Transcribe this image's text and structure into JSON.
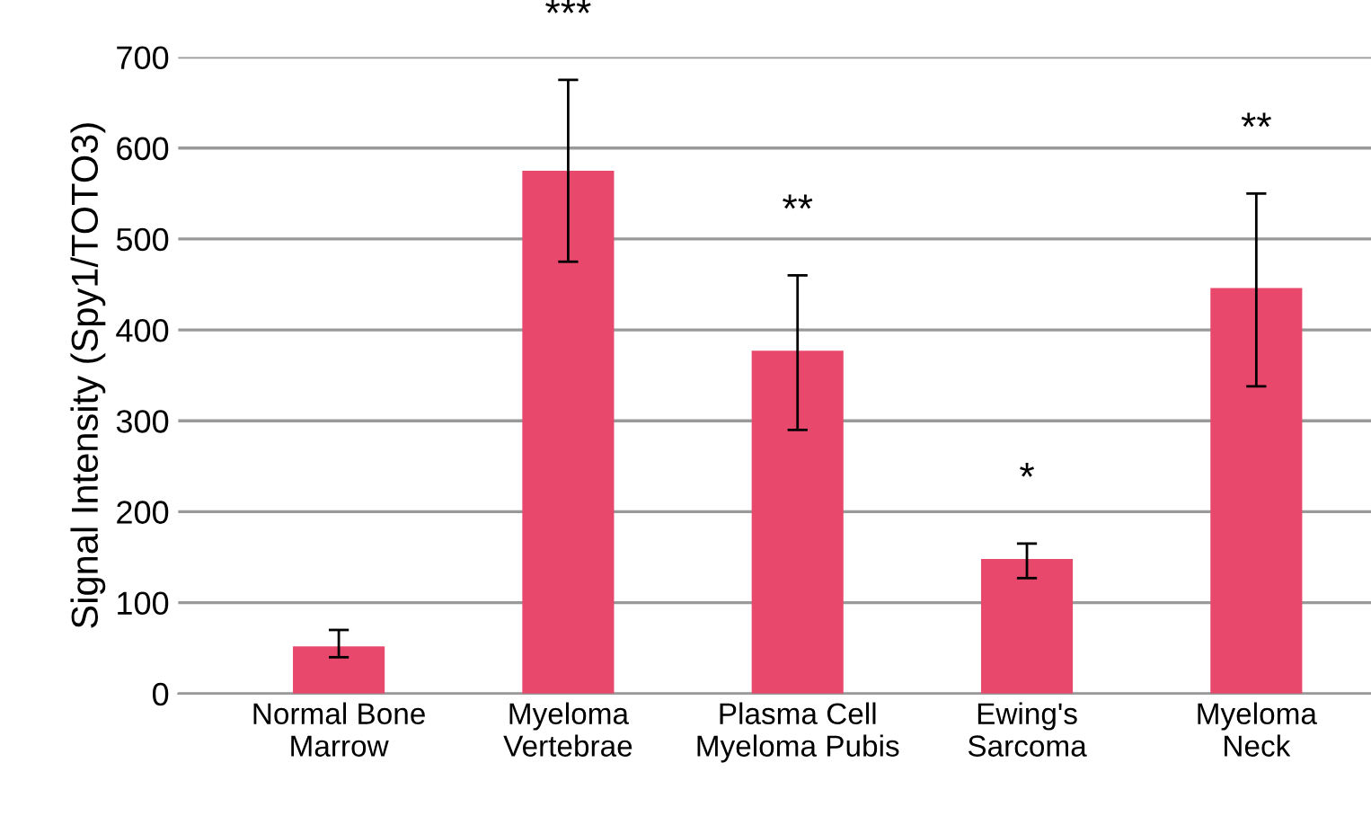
{
  "chart_data": {
    "type": "bar",
    "ylabel": "Signal Intensity (Spy1/TOTO3)",
    "categories": [
      "Normal Bone\nMarrow",
      "Myeloma\nVertebrae",
      "Plasma Cell\nMyeloma Pubis",
      "Ewing's\nSarcoma",
      "Myeloma\nNeck"
    ],
    "values": [
      52,
      575,
      377,
      148,
      446
    ],
    "color": "#e8486c",
    "errors": [
      [
        40,
        70
      ],
      [
        475,
        675
      ],
      [
        290,
        460
      ],
      [
        127,
        165
      ],
      [
        338,
        550
      ]
    ],
    "ylim": [
      0,
      700
    ],
    "yticks": [
      0,
      100,
      200,
      300,
      400,
      500,
      600,
      700
    ],
    "grid": "y",
    "annotations": [
      "***",
      "**",
      "*",
      "**"
    ]
  }
}
